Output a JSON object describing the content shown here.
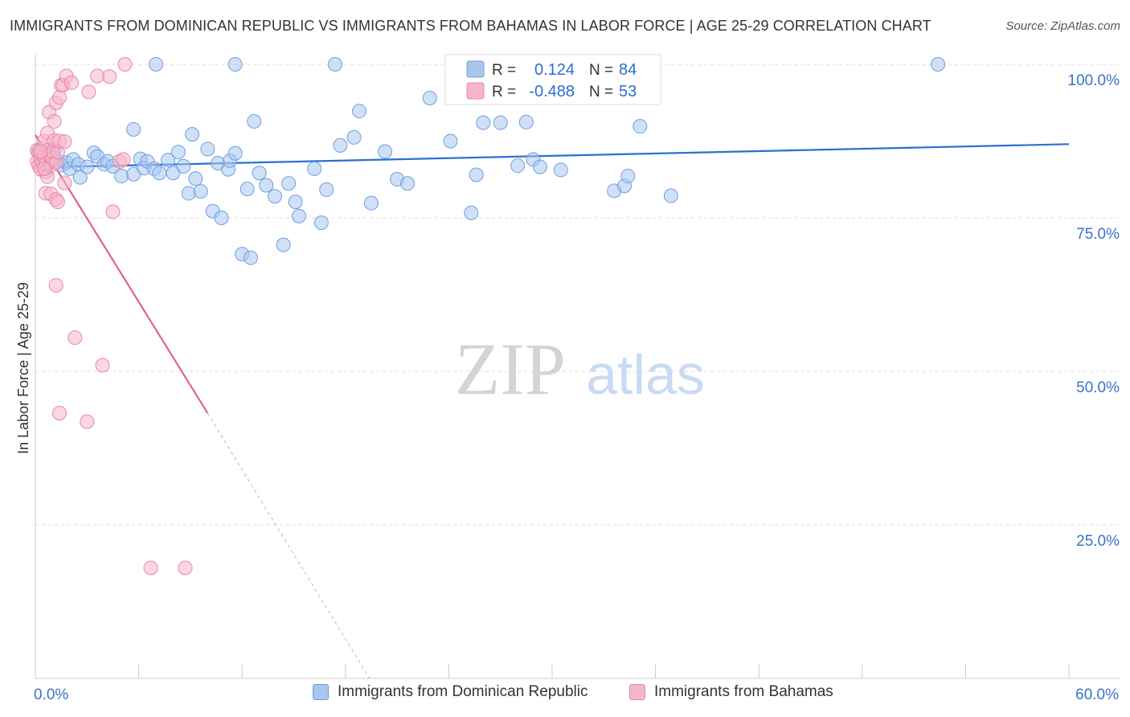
{
  "header": {
    "title": "IMMIGRANTS FROM DOMINICAN REPUBLIC VS IMMIGRANTS FROM BAHAMAS IN LABOR FORCE | AGE 25-29 CORRELATION CHART",
    "source": "Source: ZipAtlas.com"
  },
  "watermark": {
    "zip": "ZIP",
    "atlas": "atlas"
  },
  "colors": {
    "blue_fill": "#a8c6f0",
    "blue_stroke": "#6f9fe0",
    "blue_line": "#2b6fd1",
    "pink_fill": "#f6b6ca",
    "pink_stroke": "#ec85a8",
    "pink_line": "#e0628f",
    "axis_label": "#3b72c6",
    "grid": "#dddddd"
  },
  "stats_legend": [
    {
      "r_label": "R =",
      "r_value": "0.124",
      "n_label": "N =",
      "n_value": "84"
    },
    {
      "r_label": "R =",
      "r_value": "-0.488",
      "n_label": "N =",
      "n_value": "53"
    }
  ],
  "bottom_legend": [
    {
      "label": "Immigrants from Dominican Republic"
    },
    {
      "label": "Immigrants from Bahamas"
    }
  ],
  "chart_data": {
    "type": "scatter",
    "title": "IMMIGRANTS FROM DOMINICAN REPUBLIC VS IMMIGRANTS FROM BAHAMAS IN LABOR FORCE | AGE 25-29 CORRELATION CHART",
    "xlabel": "",
    "ylabel": "In Labor Force | Age 25-29",
    "xlim": [
      0,
      60
    ],
    "ylim": [
      0,
      100
    ],
    "x_tick_labels": [
      {
        "value": 0,
        "label": "0.0%"
      },
      {
        "value": 60,
        "label": "60.0%"
      }
    ],
    "y_tick_labels": [
      {
        "value": 100,
        "label": "100.0%"
      },
      {
        "value": 75,
        "label": "75.0%"
      },
      {
        "value": 50,
        "label": "50.0%"
      },
      {
        "value": 25,
        "label": "25.0%"
      }
    ],
    "series": [
      {
        "name": "Immigrants from Dominican Republic",
        "color": "blue",
        "r": 0.124,
        "n": 84,
        "trend": {
          "x0": 0,
          "y0": 83.2,
          "x1": 60,
          "y1": 87.0,
          "dashed_to": null
        },
        "points": [
          [
            0.2,
            86.0
          ],
          [
            0.3,
            84.5
          ],
          [
            0.4,
            85.7
          ],
          [
            0.6,
            83.0
          ],
          [
            0.8,
            85.0
          ],
          [
            1.0,
            85.2
          ],
          [
            1.1,
            86.1
          ],
          [
            1.3,
            84.3
          ],
          [
            1.5,
            83.6
          ],
          [
            1.8,
            84.0
          ],
          [
            2.0,
            83.0
          ],
          [
            2.2,
            84.5
          ],
          [
            2.5,
            83.7
          ],
          [
            2.6,
            81.6
          ],
          [
            3.0,
            83.3
          ],
          [
            3.4,
            85.6
          ],
          [
            3.6,
            85.0
          ],
          [
            4.0,
            83.7
          ],
          [
            4.2,
            84.2
          ],
          [
            4.5,
            83.4
          ],
          [
            5.0,
            81.8
          ],
          [
            5.7,
            82.1
          ],
          [
            6.1,
            84.6
          ],
          [
            6.3,
            83.1
          ],
          [
            6.5,
            84.2
          ],
          [
            6.9,
            83.0
          ],
          [
            7.2,
            82.3
          ],
          [
            7.7,
            84.4
          ],
          [
            8.0,
            82.3
          ],
          [
            8.3,
            85.7
          ],
          [
            8.6,
            83.4
          ],
          [
            8.9,
            79.0
          ],
          [
            9.3,
            81.4
          ],
          [
            9.6,
            79.3
          ],
          [
            10.0,
            86.2
          ],
          [
            10.3,
            76.1
          ],
          [
            10.6,
            83.9
          ],
          [
            10.8,
            75.0
          ],
          [
            11.2,
            82.9
          ],
          [
            11.3,
            84.3
          ],
          [
            11.6,
            85.5
          ],
          [
            12.0,
            69.1
          ],
          [
            12.3,
            79.7
          ],
          [
            12.5,
            68.5
          ],
          [
            12.7,
            90.7
          ],
          [
            13.0,
            82.3
          ],
          [
            13.4,
            80.3
          ],
          [
            13.9,
            78.5
          ],
          [
            14.4,
            70.6
          ],
          [
            14.7,
            80.6
          ],
          [
            15.1,
            77.6
          ],
          [
            15.3,
            75.3
          ],
          [
            16.2,
            83.0
          ],
          [
            16.6,
            74.2
          ],
          [
            16.9,
            79.6
          ],
          [
            17.7,
            86.8
          ],
          [
            18.5,
            88.1
          ],
          [
            18.8,
            92.4
          ],
          [
            19.5,
            77.4
          ],
          [
            20.3,
            85.8
          ],
          [
            21.0,
            81.3
          ],
          [
            21.6,
            80.6
          ],
          [
            22.9,
            94.5
          ],
          [
            24.1,
            87.5
          ],
          [
            25.3,
            75.8
          ],
          [
            25.6,
            82.0
          ],
          [
            26.0,
            90.5
          ],
          [
            27.0,
            90.5
          ],
          [
            28.0,
            83.5
          ],
          [
            28.5,
            90.6
          ],
          [
            28.9,
            84.5
          ],
          [
            29.3,
            83.3
          ],
          [
            30.5,
            82.8
          ],
          [
            33.6,
            79.4
          ],
          [
            34.2,
            80.2
          ],
          [
            34.4,
            81.8
          ],
          [
            35.1,
            89.9
          ],
          [
            36.9,
            78.6
          ],
          [
            7.0,
            100.0
          ],
          [
            11.6,
            100.0
          ],
          [
            17.4,
            100.0
          ],
          [
            52.4,
            100.0
          ],
          [
            5.7,
            89.4
          ],
          [
            9.1,
            88.6
          ]
        ]
      },
      {
        "name": "Immigrants from Bahamas",
        "color": "pink",
        "r": -0.488,
        "n": 53,
        "trend": {
          "x0": 0,
          "y0": 88.5,
          "x1": 10.0,
          "y1": 43.2,
          "dashed_to": {
            "x": 19.4,
            "y": 0
          }
        },
        "points": [
          [
            0.1,
            84.2
          ],
          [
            0.1,
            86.0
          ],
          [
            0.2,
            83.5
          ],
          [
            0.2,
            85.5
          ],
          [
            0.3,
            84.6
          ],
          [
            0.3,
            82.9
          ],
          [
            0.4,
            86.3
          ],
          [
            0.4,
            84.0
          ],
          [
            0.5,
            87.5
          ],
          [
            0.5,
            85.0
          ],
          [
            0.6,
            83.8
          ],
          [
            0.6,
            82.5
          ],
          [
            0.6,
            79.0
          ],
          [
            0.7,
            81.7
          ],
          [
            0.7,
            88.8
          ],
          [
            0.8,
            86.1
          ],
          [
            0.8,
            85.2
          ],
          [
            0.8,
            92.2
          ],
          [
            0.9,
            83.5
          ],
          [
            0.9,
            78.9
          ],
          [
            1.0,
            84.7
          ],
          [
            1.0,
            85.8
          ],
          [
            1.1,
            90.7
          ],
          [
            1.1,
            87.6
          ],
          [
            1.2,
            93.7
          ],
          [
            1.2,
            84.0
          ],
          [
            1.2,
            78.0
          ],
          [
            1.3,
            85.7
          ],
          [
            1.3,
            77.6
          ],
          [
            1.4,
            87.5
          ],
          [
            1.4,
            94.6
          ],
          [
            1.5,
            96.6
          ],
          [
            1.6,
            96.6
          ],
          [
            1.7,
            80.7
          ],
          [
            1.7,
            87.4
          ],
          [
            1.8,
            98.1
          ],
          [
            2.1,
            97.0
          ],
          [
            3.1,
            95.5
          ],
          [
            3.6,
            98.1
          ],
          [
            4.3,
            98.0
          ],
          [
            4.5,
            76.0
          ],
          [
            4.9,
            84.2
          ],
          [
            5.1,
            84.5
          ],
          [
            5.2,
            100.0
          ],
          [
            1.2,
            64.0
          ],
          [
            2.3,
            55.5
          ],
          [
            3.9,
            51.0
          ],
          [
            1.4,
            43.2
          ],
          [
            3.0,
            41.8
          ],
          [
            6.7,
            18.0
          ],
          [
            8.7,
            18.0
          ],
          [
            0.3,
            85.8
          ],
          [
            0.5,
            83.0
          ]
        ]
      }
    ]
  }
}
